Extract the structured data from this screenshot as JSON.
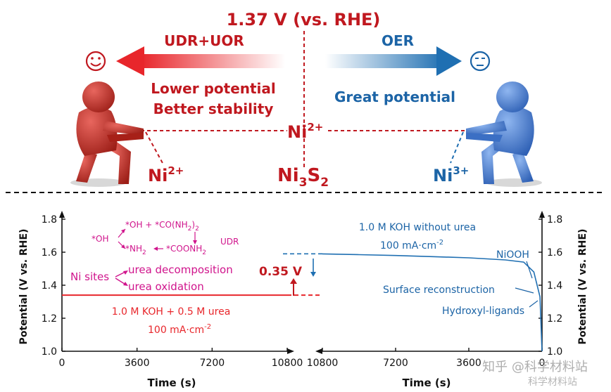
{
  "top": {
    "potential_label": "1.37 V (vs. RHE)",
    "left_arrow_label": "UDR+UOR",
    "right_arrow_label": "OER",
    "left_text_line1": "Lower potential",
    "left_text_line2": "Better stability",
    "right_text": "Great potential",
    "center_species": "Ni",
    "center_species_sup": "2+",
    "left_species": "Ni",
    "left_species_sup": "2+",
    "right_species": "Ni",
    "right_species_sup": "3+",
    "catalyst": "Ni",
    "catalyst_sub1": "3",
    "catalyst_s": "S",
    "catalyst_sub2": "2",
    "left_emoji": "happy-face",
    "right_emoji": "neutral-face"
  },
  "bottom": {
    "ylabel_left": "Potential (V vs. RHE)",
    "ylabel_right": "Potential (V vs. RHE)",
    "xlabel_left": "Time (s)",
    "xlabel_right": "Time (s)",
    "x_ticks_left": [
      "0",
      "3600",
      "7200",
      "10800"
    ],
    "x_ticks_right": [
      "10800",
      "7200",
      "3600",
      "0"
    ],
    "y_ticks": [
      "1.0",
      "1.2",
      "1.4",
      "1.6",
      "1.8"
    ],
    "udr_scheme": {
      "oh": "*OH",
      "oh_plus_co": "*OH + *CO(NH",
      "co_sub": "2",
      "co_end": ")",
      "co_sub2": "2",
      "nh2": "*NH",
      "nh2_sub": "2",
      "coonh2": "*COONH",
      "coonh2_sub": "2",
      "udr": "UDR"
    },
    "ni_sites": "Ni sites",
    "urea_decomposition": "urea decomposition",
    "urea_oxidation": "urea oxidation",
    "delta_label": "0.35 V",
    "left_condition_line1": "1.0 M KOH + 0.5 M urea",
    "left_condition_line2": "100 mA·cm",
    "left_condition_sup": "-2",
    "right_condition_line1": "1.0 M KOH without urea",
    "right_condition_line2": "100 mA·cm",
    "right_condition_sup": "-2",
    "niooh": "NiOOH",
    "surface_reconstruction": "Surface reconstruction",
    "hydroxyl_ligands": "Hydroxyl-ligands",
    "watermark_line1": "知乎 @科学材料站",
    "watermark_line2": "科学材料站"
  },
  "colors": {
    "red": "#c0181f",
    "blue": "#1c64a6",
    "pink": "#d0148c",
    "left_trace": "#e8262b",
    "right_trace": "#1f6fb2"
  },
  "chart_data": [
    {
      "type": "line",
      "ylabel": "Potential (V vs. RHE)",
      "xlabel": "Time (s)",
      "xlim": [
        0,
        10800
      ],
      "ylim": [
        1.0,
        1.8
      ],
      "series": [
        {
          "x": [
            0,
            3600,
            7200,
            10800
          ],
          "y": [
            1.34,
            1.34,
            1.34,
            1.34
          ]
        }
      ]
    },
    {
      "type": "line",
      "ylabel": "Potential (V vs. RHE)",
      "xlabel": "Time (s)",
      "xlim": [
        10800,
        0
      ],
      "ylim": [
        1.0,
        1.8
      ],
      "series": [
        {
          "x": [
            10800,
            9000,
            7200,
            5400,
            3600,
            1800,
            900,
            400,
            100,
            0
          ],
          "y": [
            1.59,
            1.585,
            1.58,
            1.573,
            1.566,
            1.553,
            1.54,
            1.48,
            1.33,
            1.0
          ]
        }
      ]
    }
  ]
}
